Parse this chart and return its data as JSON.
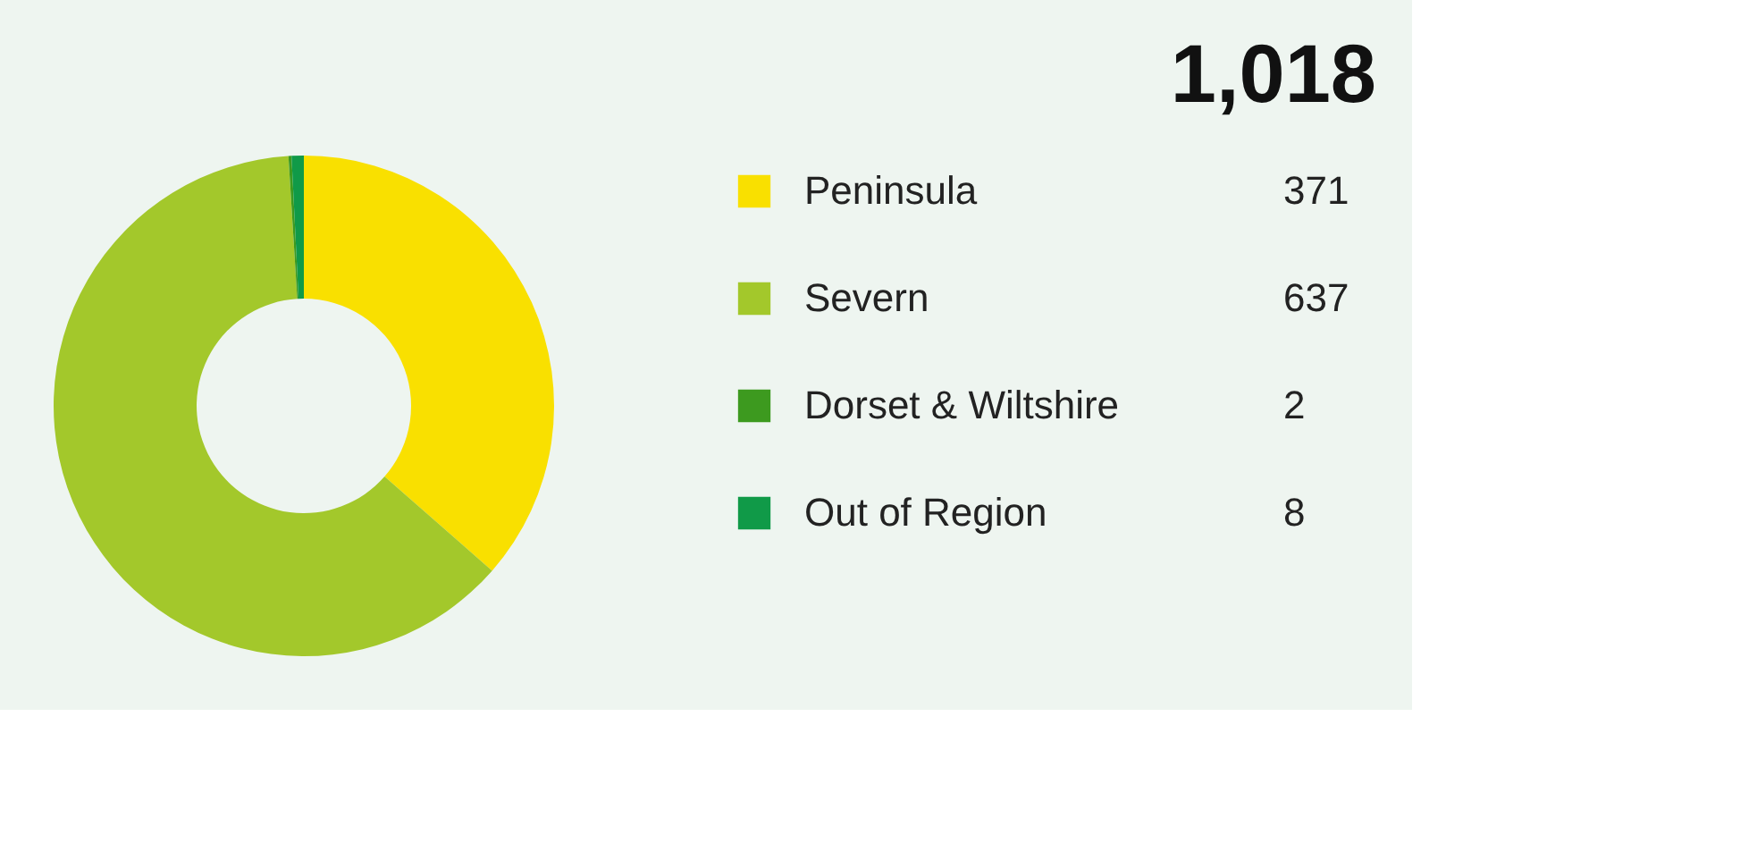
{
  "chart_data": {
    "type": "donut",
    "title": "1,018",
    "categories": [
      "Peninsula",
      "Severn",
      "Dorset & Wiltshire",
      "Out of Region"
    ],
    "values": [
      371,
      637,
      2,
      8
    ],
    "colors": [
      "#f9e000",
      "#a3c82b",
      "#3d9a1f",
      "#109a48"
    ],
    "data_labels": true,
    "legend": "right"
  }
}
